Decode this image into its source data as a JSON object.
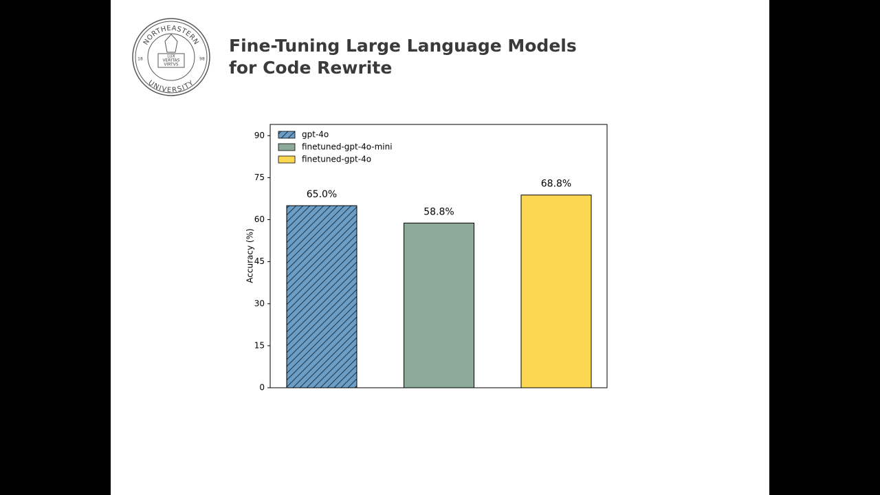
{
  "slide": {
    "title_lines": [
      "Fine-Tuning Large Language Models",
      "for Code Rewrite"
    ]
  },
  "logo": {
    "top_text": "NORTHEASTERN",
    "bottom_text": "UNIVERSITY",
    "motto": [
      "LUX",
      "VERITAS",
      "VIRTVS"
    ],
    "year_left": "18",
    "year_right": "98"
  },
  "chart_data": {
    "type": "bar",
    "ylabel": "Accuracy (%)",
    "categories": [
      null
    ],
    "series": [
      {
        "name": "gpt-4o",
        "color": "#6a9ec6",
        "hatch": "//",
        "values": [
          65.0
        ],
        "value_labels": [
          "65.0%"
        ]
      },
      {
        "name": "finetuned-gpt-4o-mini",
        "color": "#8daa98",
        "values": [
          58.8
        ],
        "value_labels": [
          "58.8%"
        ]
      },
      {
        "name": "finetuned-gpt-4o",
        "color": "#fcd852",
        "values": [
          68.8
        ],
        "value_labels": [
          "68.8%"
        ]
      }
    ],
    "ylim": [
      0,
      94
    ],
    "yticks": [
      0,
      15,
      30,
      45,
      60,
      75,
      90
    ],
    "grid": false,
    "legend": "upper left"
  }
}
